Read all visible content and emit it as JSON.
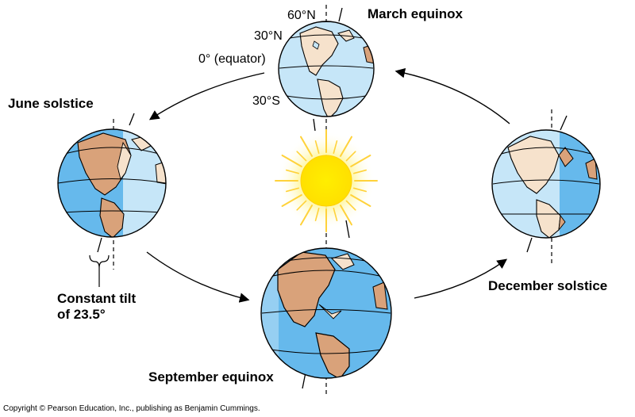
{
  "labels": {
    "march": "March equinox",
    "june": "June solstice",
    "september": "September equinox",
    "december": "December solstice",
    "lat_60n": "60°N",
    "lat_30n": "30°N",
    "lat_equator": "0° (equator)",
    "lat_30s": "30°S",
    "tilt_line1": "Constant tilt",
    "tilt_line2": "of 23.5°",
    "copyright": "Copyright © Pearson Education, Inc., publishing as Benjamin Cummings."
  },
  "colors": {
    "ocean_lit": "#c6e6f8",
    "ocean_dark": "#66b9ec",
    "land_lit": "#f6e2cc",
    "land_dark": "#d9a27a",
    "sun": "#ffee00",
    "sun_glow": "#fff7a8",
    "ray": "#ffd23a",
    "outline": "#000000"
  },
  "icons": {
    "earth_march": "globe-icon",
    "earth_june": "globe-icon",
    "earth_september": "globe-icon",
    "earth_december": "globe-icon",
    "sun": "sun-icon"
  },
  "tilt_degrees": 23.5
}
